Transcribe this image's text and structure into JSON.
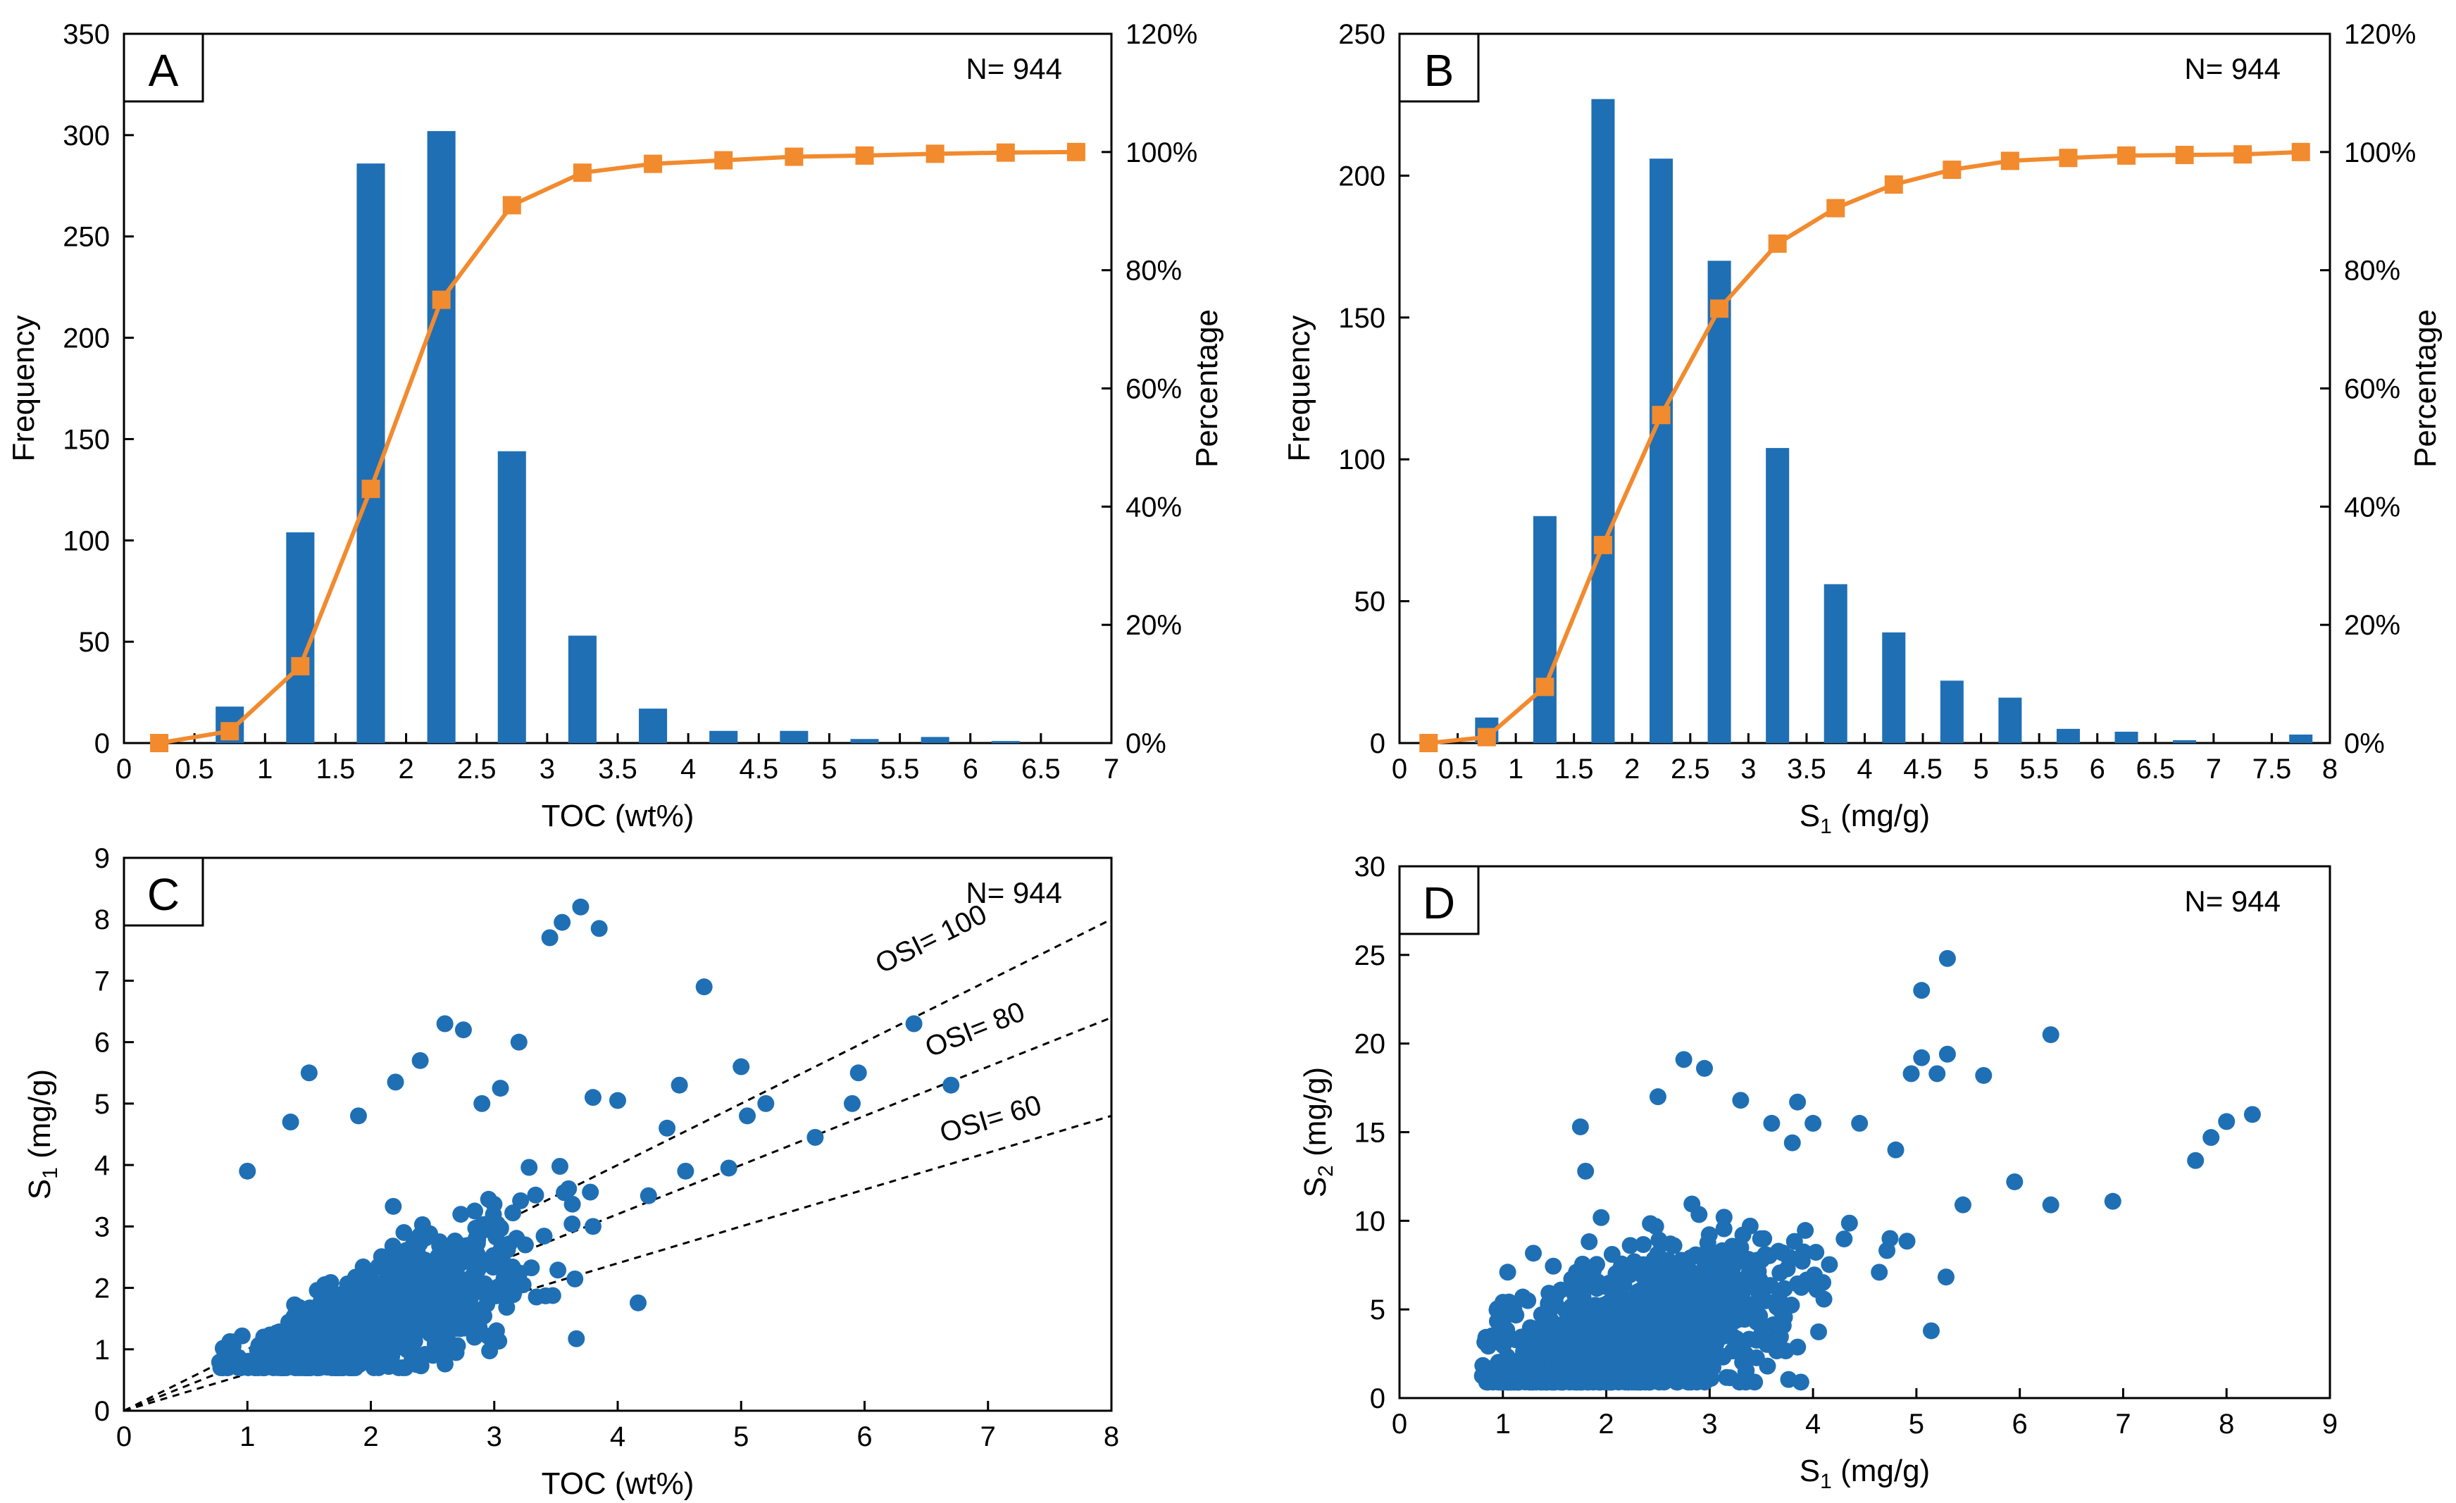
{
  "colors": {
    "bar": "#1f6fb5",
    "line": "#f28a2e",
    "point": "#1f6fb5",
    "axis": "#000000"
  },
  "chart_data": [
    {
      "id": "A",
      "type": "bar",
      "panel_label": "A",
      "annotation": "N= 944",
      "xlabel": "TOC (wt%)",
      "ylabel": "Frequency",
      "y2label": "Percentage",
      "xlim": [
        0,
        7
      ],
      "ylim": [
        0,
        350
      ],
      "y2lim": [
        0,
        120
      ],
      "x_ticks": [
        0,
        0.5,
        1,
        1.5,
        2,
        2.5,
        3,
        3.5,
        4,
        4.5,
        5,
        5.5,
        6,
        6.5,
        7
      ],
      "x_tick_labels": [
        "0",
        "0.5",
        "1",
        "1.5",
        "2",
        "2.5",
        "3",
        "3.5",
        "4",
        "4.5",
        "5",
        "5.5",
        "6",
        "6.5",
        "7"
      ],
      "y_ticks": [
        0,
        50,
        100,
        150,
        200,
        250,
        300,
        350
      ],
      "y_tick_labels": [
        "0",
        "50",
        "100",
        "150",
        "200",
        "250",
        "300",
        "350"
      ],
      "y2_ticks": [
        0,
        20,
        40,
        60,
        80,
        100,
        120
      ],
      "y2_tick_labels": [
        "0%",
        "20%",
        "40%",
        "60%",
        "80%",
        "100%",
        "120%"
      ],
      "bar_centers": [
        0.75,
        1.25,
        1.75,
        2.25,
        2.75,
        3.25,
        3.75,
        4.25,
        4.75,
        5.25,
        5.75,
        6.25
      ],
      "bar_width": 0.2,
      "values": [
        18,
        104,
        286,
        302,
        144,
        53,
        17,
        6,
        6,
        2,
        3,
        1
      ],
      "cumulative": {
        "x": [
          0.25,
          0.75,
          1.25,
          1.75,
          2.25,
          2.75,
          3.25,
          3.75,
          4.25,
          4.75,
          5.25,
          5.75,
          6.25,
          6.75
        ],
        "y": [
          0,
          2,
          13,
          43,
          75,
          91,
          96.5,
          98,
          98.6,
          99.2,
          99.4,
          99.7,
          99.9,
          100
        ]
      }
    },
    {
      "id": "B",
      "type": "bar",
      "panel_label": "B",
      "annotation": "N= 944",
      "xlabel": "S",
      "xlabel_sub": "1",
      "xlabel_tail": " (mg/g)",
      "ylabel": "Frequency",
      "y2label": "Percentage",
      "xlim": [
        0,
        8
      ],
      "ylim": [
        0,
        250
      ],
      "y2lim": [
        0,
        120
      ],
      "x_ticks": [
        0,
        0.5,
        1,
        1.5,
        2,
        2.5,
        3,
        3.5,
        4,
        4.5,
        5,
        5.5,
        6,
        6.5,
        7,
        7.5,
        8
      ],
      "x_tick_labels": [
        "0",
        "0.5",
        "1",
        "1.5",
        "2",
        "2.5",
        "3",
        "3.5",
        "4",
        "4.5",
        "5",
        "5.5",
        "6",
        "6.5",
        "7",
        "7.5",
        "8"
      ],
      "y_ticks": [
        0,
        50,
        100,
        150,
        200,
        250
      ],
      "y_tick_labels": [
        "0",
        "50",
        "100",
        "150",
        "200",
        "250"
      ],
      "y2_ticks": [
        0,
        20,
        40,
        60,
        80,
        100,
        120
      ],
      "y2_tick_labels": [
        "0%",
        "20%",
        "40%",
        "60%",
        "80%",
        "100%",
        "120%"
      ],
      "bar_centers": [
        0.75,
        1.25,
        1.75,
        2.25,
        2.75,
        3.25,
        3.75,
        4.25,
        4.75,
        5.25,
        5.75,
        6.25,
        6.75,
        7.25,
        7.75
      ],
      "bar_width": 0.2,
      "values": [
        9,
        80,
        227,
        206,
        170,
        104,
        56,
        39,
        22,
        16,
        5,
        4,
        1,
        0,
        3
      ],
      "cumulative": {
        "x": [
          0.25,
          0.75,
          1.25,
          1.75,
          2.25,
          2.75,
          3.25,
          3.75,
          4.25,
          4.75,
          5.25,
          5.75,
          6.25,
          6.75,
          7.25,
          7.75
        ],
        "y": [
          0,
          1,
          9.5,
          33.5,
          55.5,
          73.5,
          84.5,
          90.5,
          94.5,
          97,
          98.5,
          99,
          99.4,
          99.5,
          99.6,
          100
        ]
      }
    },
    {
      "id": "C",
      "type": "scatter",
      "panel_label": "C",
      "annotation": "N= 944",
      "xlabel": "TOC (wt%)",
      "ylabel": "S",
      "ylabel_sub": "1",
      "ylabel_tail": " (mg/g)",
      "xlim": [
        0,
        8
      ],
      "ylim": [
        0,
        9
      ],
      "x_ticks": [
        0,
        1,
        2,
        3,
        4,
        5,
        6,
        7,
        8
      ],
      "x_tick_labels": [
        "0",
        "1",
        "2",
        "3",
        "4",
        "5",
        "6",
        "7",
        "8"
      ],
      "y_ticks": [
        0,
        1,
        2,
        3,
        4,
        5,
        6,
        7,
        8,
        9
      ],
      "y_tick_labels": [
        "0",
        "1",
        "2",
        "3",
        "4",
        "5",
        "6",
        "7",
        "8",
        "9"
      ],
      "reference_lines": [
        {
          "label": "OSI= 100",
          "slope": 1.0
        },
        {
          "label": "OSI= 80",
          "slope": 0.8
        },
        {
          "label": "OSI= 60",
          "slope": 0.6
        }
      ],
      "points": [
        [
          3.7,
          8.2
        ],
        [
          3.55,
          7.95
        ],
        [
          3.45,
          7.7
        ],
        [
          3.85,
          7.85
        ],
        [
          4.7,
          6.9
        ],
        [
          6.4,
          6.3
        ],
        [
          3.2,
          6.0
        ],
        [
          5.95,
          5.5
        ],
        [
          6.7,
          5.3
        ],
        [
          5.0,
          5.6
        ],
        [
          4.5,
          5.3
        ],
        [
          3.8,
          5.1
        ],
        [
          4.0,
          5.05
        ],
        [
          5.2,
          5.0
        ],
        [
          5.9,
          5.0
        ],
        [
          5.05,
          4.8
        ],
        [
          4.4,
          4.6
        ],
        [
          4.9,
          3.95
        ],
        [
          5.6,
          4.45
        ],
        [
          4.55,
          3.9
        ],
        [
          4.25,
          3.5
        ],
        [
          3.8,
          3.0
        ],
        [
          1.0,
          3.9
        ],
        [
          1.35,
          4.7
        ],
        [
          1.5,
          5.5
        ],
        [
          2.6,
          6.3
        ],
        [
          2.75,
          6.2
        ],
        [
          2.4,
          5.7
        ],
        [
          2.2,
          5.35
        ],
        [
          1.9,
          4.8
        ],
        [
          3.05,
          5.25
        ],
        [
          2.9,
          5.0
        ]
      ]
    },
    {
      "id": "D",
      "type": "scatter",
      "panel_label": "D",
      "annotation": "N= 944",
      "xlabel": "S",
      "xlabel_sub": "1",
      "xlabel_tail": " (mg/g)",
      "ylabel": "S",
      "ylabel_sub": "2",
      "ylabel_tail": " (mg/g)",
      "xlim": [
        0,
        9
      ],
      "ylim": [
        0,
        30
      ],
      "x_ticks": [
        0,
        1,
        2,
        3,
        4,
        5,
        6,
        7,
        8,
        9
      ],
      "x_tick_labels": [
        "0",
        "1",
        "2",
        "3",
        "4",
        "5",
        "6",
        "7",
        "8",
        "9"
      ],
      "y_ticks": [
        0,
        5,
        10,
        15,
        20,
        25,
        30
      ],
      "y_tick_labels": [
        "0",
        "5",
        "10",
        "15",
        "20",
        "25",
        "30"
      ],
      "points": [
        [
          5.3,
          24.8
        ],
        [
          5.05,
          23.0
        ],
        [
          6.3,
          20.5
        ],
        [
          5.3,
          19.4
        ],
        [
          5.05,
          19.2
        ],
        [
          5.2,
          18.3
        ],
        [
          5.65,
          18.2
        ],
        [
          4.95,
          18.3
        ],
        [
          2.75,
          19.1
        ],
        [
          2.95,
          18.6
        ],
        [
          2.5,
          17.0
        ],
        [
          3.85,
          16.7
        ],
        [
          8.25,
          16.0
        ],
        [
          8.0,
          15.6
        ],
        [
          7.85,
          14.7
        ],
        [
          7.7,
          13.4
        ],
        [
          6.9,
          11.1
        ],
        [
          5.95,
          12.2
        ],
        [
          6.3,
          10.9
        ],
        [
          5.45,
          10.9
        ],
        [
          3.6,
          15.5
        ],
        [
          3.8,
          14.4
        ],
        [
          4.45,
          15.5
        ],
        [
          4.8,
          14.0
        ],
        [
          4.0,
          15.5
        ],
        [
          1.75,
          15.3
        ],
        [
          1.8,
          12.8
        ],
        [
          3.3,
          16.8
        ]
      ]
    }
  ]
}
